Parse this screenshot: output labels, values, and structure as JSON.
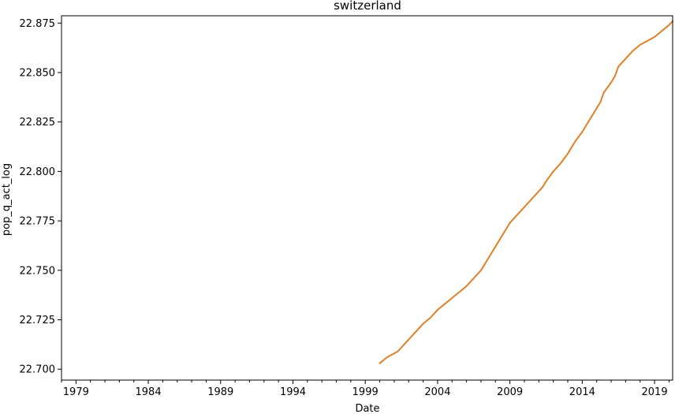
{
  "chart_data": {
    "type": "line",
    "title": "switzerland",
    "xlabel": "Date",
    "ylabel": "pop_q_act_log",
    "xlim": [
      1978.0,
      2020.25
    ],
    "ylim": [
      22.6945,
      22.8787
    ],
    "x_ticks": [
      1979,
      1984,
      1989,
      1994,
      1999,
      2004,
      2009,
      2014,
      2019
    ],
    "x_tick_labels": [
      "1979",
      "1984",
      "1989",
      "1994",
      "1999",
      "2004",
      "2009",
      "2014",
      "2019"
    ],
    "y_ticks": [
      22.7,
      22.725,
      22.75,
      22.775,
      22.8,
      22.825,
      22.85,
      22.875
    ],
    "y_tick_labels": [
      "22.700",
      "22.725",
      "22.750",
      "22.775",
      "22.800",
      "22.825",
      "22.850",
      "22.875"
    ],
    "grid": false,
    "line_color": "#e07f26",
    "series": [
      {
        "x": [
          2000.0,
          2000.5,
          2001.0,
          2001.25,
          2001.5,
          2002.0,
          2002.5,
          2003.0,
          2003.5,
          2004.0,
          2004.5,
          2005.0,
          2005.5,
          2006.0,
          2006.5,
          2007.0,
          2007.5,
          2008.0,
          2008.5,
          2009.0,
          2009.5,
          2010.0,
          2010.5,
          2011.0,
          2011.25,
          2011.5,
          2012.0,
          2012.5,
          2013.0,
          2013.5,
          2014.0,
          2014.5,
          2015.0,
          2015.25,
          2015.5,
          2016.0,
          2016.25,
          2016.5,
          2017.0,
          2017.5,
          2018.0,
          2018.5,
          2019.0,
          2019.5,
          2020.0,
          2020.25
        ],
        "y": [
          22.703,
          22.706,
          22.708,
          22.709,
          22.711,
          22.715,
          22.719,
          22.723,
          22.726,
          22.73,
          22.733,
          22.736,
          22.739,
          22.742,
          22.746,
          22.75,
          22.756,
          22.762,
          22.768,
          22.774,
          22.778,
          22.782,
          22.786,
          22.79,
          22.792,
          22.795,
          22.8,
          22.804,
          22.809,
          22.815,
          22.82,
          22.826,
          22.832,
          22.835,
          22.84,
          22.845,
          22.848,
          22.853,
          22.857,
          22.861,
          22.864,
          22.866,
          22.868,
          22.871,
          22.874,
          22.876
        ]
      }
    ]
  }
}
